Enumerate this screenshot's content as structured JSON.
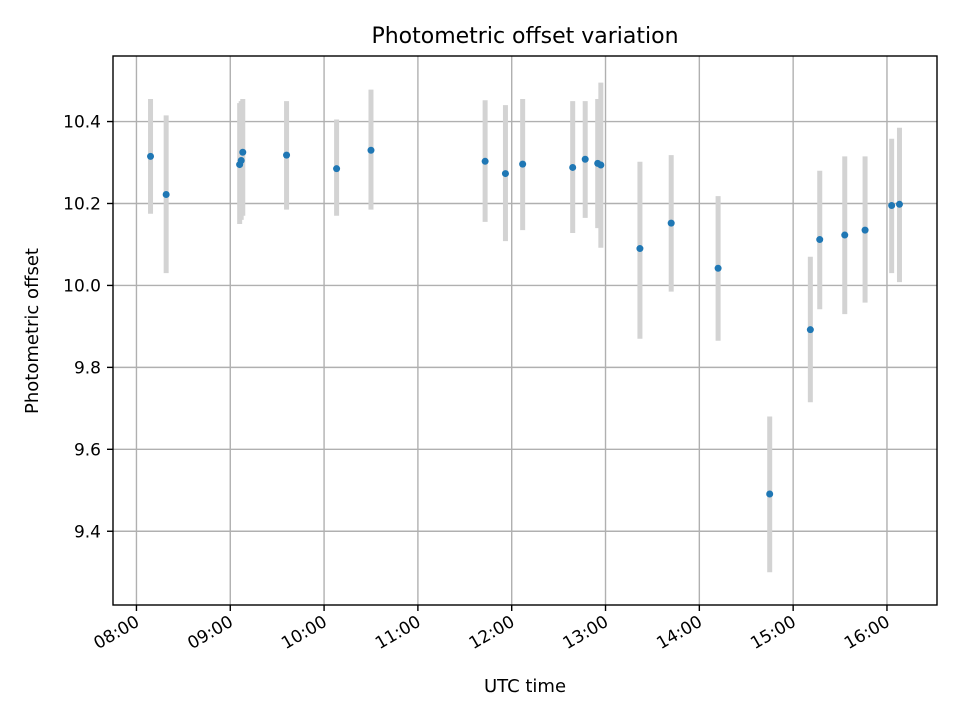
{
  "chart_data": {
    "type": "scatter",
    "title": "Photometric offset variation",
    "xlabel": "UTC time",
    "ylabel": "Photometric offset",
    "xlim": [
      "07:45",
      "16:32"
    ],
    "ylim": [
      9.22,
      10.56
    ],
    "grid": true,
    "x_ticks": [
      "08:00",
      "09:00",
      "10:00",
      "11:00",
      "12:00",
      "13:00",
      "14:00",
      "15:00",
      "16:00"
    ],
    "y_ticks": [
      "9.4",
      "9.6",
      "9.8",
      "10.0",
      "10.2",
      "10.4"
    ],
    "colors": {
      "point": "#1f77b4",
      "errorbar": "#d3d3d3"
    },
    "points": [
      {
        "time": "08:09",
        "offset": 10.315,
        "low": 10.175,
        "high": 10.455
      },
      {
        "time": "08:19",
        "offset": 10.222,
        "low": 10.03,
        "high": 10.415
      },
      {
        "time": "09:06",
        "offset": 10.295,
        "low": 10.15,
        "high": 10.445
      },
      {
        "time": "09:07",
        "offset": 10.305,
        "low": 10.16,
        "high": 10.45
      },
      {
        "time": "09:08",
        "offset": 10.325,
        "low": 10.17,
        "high": 10.455
      },
      {
        "time": "09:36",
        "offset": 10.318,
        "low": 10.185,
        "high": 10.45
      },
      {
        "time": "10:08",
        "offset": 10.285,
        "low": 10.17,
        "high": 10.405
      },
      {
        "time": "10:30",
        "offset": 10.33,
        "low": 10.185,
        "high": 10.478
      },
      {
        "time": "11:43",
        "offset": 10.303,
        "low": 10.155,
        "high": 10.452
      },
      {
        "time": "11:56",
        "offset": 10.273,
        "low": 10.108,
        "high": 10.44
      },
      {
        "time": "12:07",
        "offset": 10.296,
        "low": 10.135,
        "high": 10.455
      },
      {
        "time": "12:39",
        "offset": 10.288,
        "low": 10.128,
        "high": 10.45
      },
      {
        "time": "12:47",
        "offset": 10.308,
        "low": 10.165,
        "high": 10.45
      },
      {
        "time": "12:55",
        "offset": 10.298,
        "low": 10.14,
        "high": 10.455
      },
      {
        "time": "12:57",
        "offset": 10.294,
        "low": 10.092,
        "high": 10.495
      },
      {
        "time": "13:22",
        "offset": 10.09,
        "low": 9.87,
        "high": 10.302
      },
      {
        "time": "13:42",
        "offset": 10.152,
        "low": 9.985,
        "high": 10.318
      },
      {
        "time": "14:12",
        "offset": 10.042,
        "low": 9.865,
        "high": 10.218
      },
      {
        "time": "14:45",
        "offset": 9.491,
        "low": 9.3,
        "high": 9.68
      },
      {
        "time": "15:11",
        "offset": 9.892,
        "low": 9.715,
        "high": 10.07
      },
      {
        "time": "15:17",
        "offset": 10.112,
        "low": 9.942,
        "high": 10.28
      },
      {
        "time": "15:33",
        "offset": 10.123,
        "low": 9.93,
        "high": 10.315
      },
      {
        "time": "15:46",
        "offset": 10.135,
        "low": 9.958,
        "high": 10.315
      },
      {
        "time": "16:03",
        "offset": 10.195,
        "low": 10.03,
        "high": 10.358
      },
      {
        "time": "16:08",
        "offset": 10.198,
        "low": 10.008,
        "high": 10.385
      }
    ]
  }
}
